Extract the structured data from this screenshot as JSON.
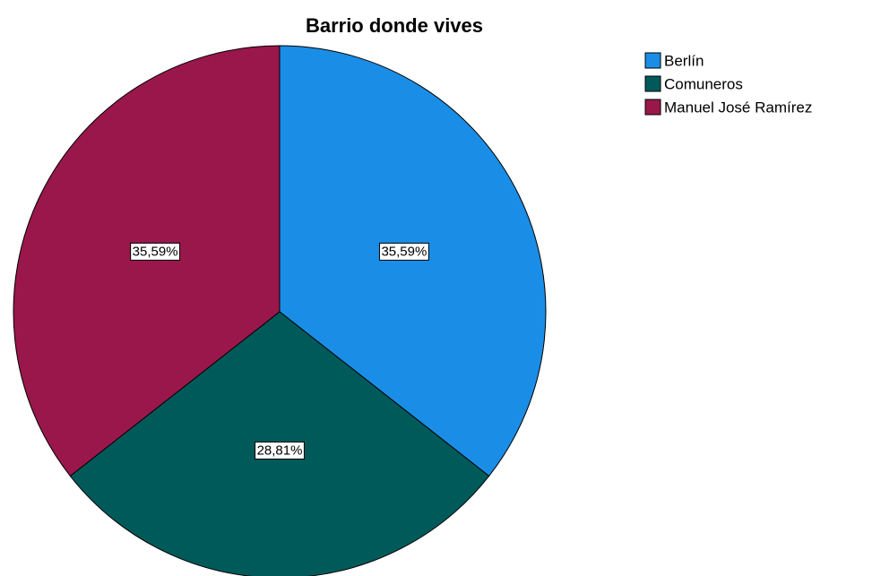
{
  "chart_data": {
    "type": "pie",
    "title": "Barrio donde vives",
    "categories": [
      "Berlín",
      "Comuneros",
      "Manuel José Ramírez"
    ],
    "values": [
      35.59,
      28.81,
      35.59
    ],
    "value_labels": [
      "35,59%",
      "28,81%",
      "35,59%"
    ],
    "colors": [
      "#1a8ee6",
      "#015a5a",
      "#9a174b"
    ],
    "legend": "right"
  }
}
